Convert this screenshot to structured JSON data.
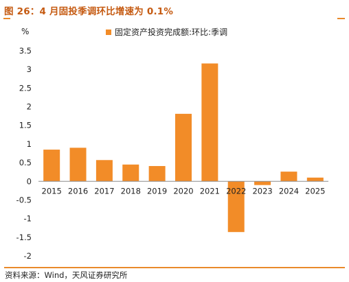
{
  "figure": {
    "title": "图 26：4 月固投季调环比增速为 0.1%",
    "source": "资料来源：Wind，天风证券研究所"
  },
  "chart_data": {
    "type": "bar",
    "unit_label": "%",
    "categories": [
      "2015",
      "2016",
      "2017",
      "2018",
      "2019",
      "2020",
      "2021",
      "2022",
      "2023",
      "2024",
      "2025"
    ],
    "series": [
      {
        "name": "固定资产投资完成额:环比:季调",
        "color": "#f28c28",
        "values": [
          0.85,
          0.9,
          0.57,
          0.45,
          0.41,
          1.81,
          3.16,
          -1.36,
          -0.1,
          0.26,
          0.1
        ]
      }
    ],
    "y_ticks": [
      "3.5",
      "3",
      "2.5",
      "2",
      "1.5",
      "1",
      "0.5",
      "0",
      "-0.5",
      "-1",
      "-1.5",
      "-2"
    ],
    "ylim": [
      -2,
      3.5
    ],
    "grid": false,
    "legend_position": "top-center"
  }
}
